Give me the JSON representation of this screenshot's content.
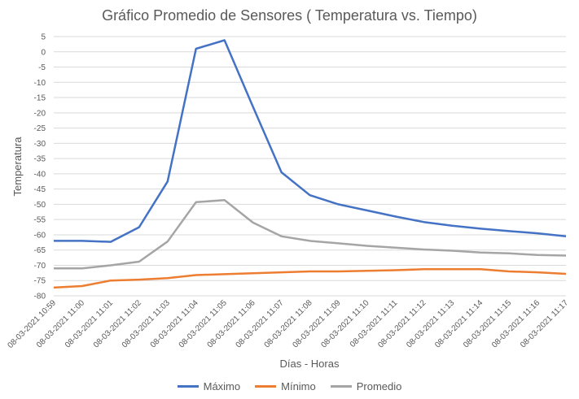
{
  "chart_data": {
    "type": "line",
    "title": "Gráfico Promedio de Sensores ( Temperatura vs. Tiempo)",
    "xlabel": "Días - Horas",
    "ylabel": "Temperatura",
    "ylim": [
      -80,
      5
    ],
    "yticks": [
      5,
      0,
      -5,
      -10,
      -15,
      -20,
      -25,
      -30,
      -35,
      -40,
      -45,
      -50,
      -55,
      -60,
      -65,
      -70,
      -75,
      -80
    ],
    "grid": true,
    "legend_position": "bottom",
    "categories": [
      "08-03-2021 10:59",
      "08-03-2021 11:00",
      "08-03-2021 11:01",
      "08-03-2021 11:02",
      "08-03-2021 11:03",
      "08-03-2021 11:04",
      "08-03-2021 11:05",
      "08-03-2021 11:06",
      "08-03-2021 11:07",
      "08-03-2021 11:08",
      "08-03-2021 11:09",
      "08-03-2021 11:10",
      "08-03-2021 11:11",
      "08-03-2021 11:12",
      "08-03-2021 11:13",
      "08-03-2021 11:14",
      "08-03-2021 11:15",
      "08-03-2021 11:16",
      "08-03-2021 11:17"
    ],
    "series": [
      {
        "name": "Máximo",
        "color": "#4472C4",
        "values": [
          -62,
          -62,
          -62.3,
          -57.5,
          -42.5,
          1,
          3.8,
          -18,
          -39.5,
          -47,
          -50,
          -52,
          -54,
          -55.8,
          -57,
          -58,
          -58.8,
          -59.5,
          -60.5
        ]
      },
      {
        "name": "Mínimo",
        "color": "#ED7D31",
        "values": [
          -77.3,
          -76.8,
          -75,
          -74.7,
          -74.2,
          -73.2,
          -72.9,
          -72.6,
          -72.3,
          -72,
          -72,
          -71.8,
          -71.6,
          -71.3,
          -71.3,
          -71.3,
          -72,
          -72.3,
          -72.8
        ]
      },
      {
        "name": "Promedio",
        "color": "#A5A5A5",
        "values": [
          -71,
          -71,
          -70,
          -68.8,
          -62.2,
          -49.3,
          -48.6,
          -56,
          -60.5,
          -62,
          -62.8,
          -63.6,
          -64.2,
          -64.8,
          -65.2,
          -65.8,
          -66.1,
          -66.6,
          -66.8
        ]
      }
    ]
  }
}
